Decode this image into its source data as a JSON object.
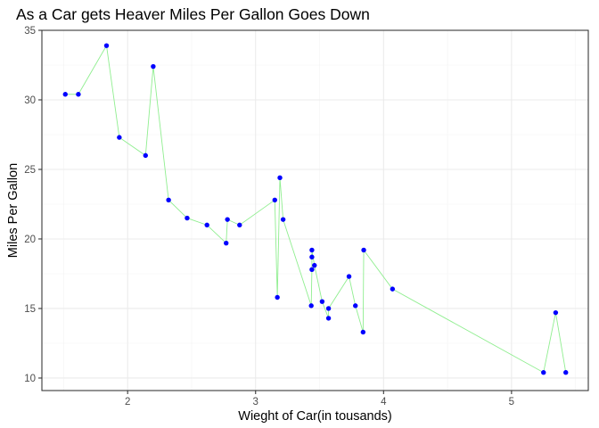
{
  "chart_data": {
    "type": "line",
    "title": "As a Car gets Heaver Miles Per Gallon Goes Down",
    "xlabel": "Wieght of Car(in tousands)",
    "ylabel": "Miles Per Gallon",
    "xlim": [
      1.33,
      5.6
    ],
    "ylim": [
      9.1,
      35.0
    ],
    "xticks": [
      2,
      3,
      4,
      5
    ],
    "yticks": [
      10,
      15,
      20,
      25,
      30,
      35
    ],
    "grid": true,
    "legend": "none",
    "colors": {
      "line": "#90ee90",
      "points": "#0000ff",
      "border": "#333333",
      "grid": "#ebebeb"
    },
    "points": [
      {
        "x": 1.513,
        "y": 30.4
      },
      {
        "x": 1.615,
        "y": 30.4
      },
      {
        "x": 1.835,
        "y": 33.9
      },
      {
        "x": 1.935,
        "y": 27.3
      },
      {
        "x": 2.14,
        "y": 26.0
      },
      {
        "x": 2.2,
        "y": 32.4
      },
      {
        "x": 2.32,
        "y": 22.8
      },
      {
        "x": 2.465,
        "y": 21.5
      },
      {
        "x": 2.62,
        "y": 21.0
      },
      {
        "x": 2.77,
        "y": 19.7
      },
      {
        "x": 2.78,
        "y": 21.4
      },
      {
        "x": 2.875,
        "y": 21.0
      },
      {
        "x": 3.15,
        "y": 22.8
      },
      {
        "x": 3.17,
        "y": 15.8
      },
      {
        "x": 3.19,
        "y": 24.4
      },
      {
        "x": 3.215,
        "y": 21.4
      },
      {
        "x": 3.435,
        "y": 15.2
      },
      {
        "x": 3.44,
        "y": 17.8
      },
      {
        "x": 3.44,
        "y": 18.7
      },
      {
        "x": 3.44,
        "y": 19.2
      },
      {
        "x": 3.46,
        "y": 18.1
      },
      {
        "x": 3.52,
        "y": 15.5
      },
      {
        "x": 3.57,
        "y": 14.3
      },
      {
        "x": 3.57,
        "y": 15.0
      },
      {
        "x": 3.73,
        "y": 17.3
      },
      {
        "x": 3.78,
        "y": 15.2
      },
      {
        "x": 3.84,
        "y": 13.3
      },
      {
        "x": 3.845,
        "y": 19.2
      },
      {
        "x": 4.07,
        "y": 16.4
      },
      {
        "x": 5.25,
        "y": 10.4
      },
      {
        "x": 5.345,
        "y": 14.7
      },
      {
        "x": 5.424,
        "y": 10.4
      }
    ]
  }
}
